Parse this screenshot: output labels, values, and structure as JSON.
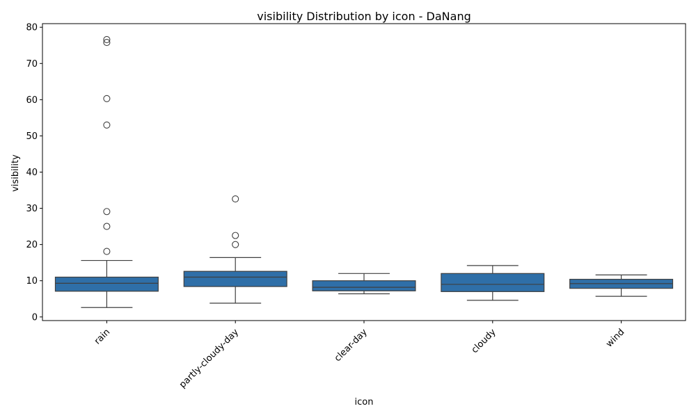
{
  "chart_data": {
    "type": "box",
    "title": "visibility Distribution by icon - DaNang",
    "xlabel": "icon",
    "ylabel": "visibility",
    "ylim": [
      -1,
      81
    ],
    "yticks": [
      0,
      10,
      20,
      30,
      40,
      50,
      60,
      70,
      80
    ],
    "grid": false,
    "legend": "none",
    "box_color": "#2f6fa8",
    "categories": [
      "rain",
      "partly-cloudy-day",
      "clear-day",
      "cloudy",
      "wind"
    ],
    "boxes": [
      {
        "category": "rain",
        "whislo": 2.6,
        "q1": 7.1,
        "med": 9.3,
        "q3": 11.0,
        "whishi": 15.6,
        "fliers": [
          76.6,
          75.8,
          60.3,
          53.0,
          29.1,
          25.0,
          18.1
        ]
      },
      {
        "category": "partly-cloudy-day",
        "whislo": 3.8,
        "q1": 8.4,
        "med": 11.0,
        "q3": 12.6,
        "whishi": 16.4,
        "fliers": [
          32.6,
          22.5,
          20.0
        ]
      },
      {
        "category": "clear-day",
        "whislo": 6.4,
        "q1": 7.2,
        "med": 8.2,
        "q3": 10.0,
        "whishi": 12.0,
        "fliers": []
      },
      {
        "category": "cloudy",
        "whislo": 4.6,
        "q1": 7.0,
        "med": 9.0,
        "q3": 12.0,
        "whishi": 14.2,
        "fliers": []
      },
      {
        "category": "wind",
        "whislo": 5.7,
        "q1": 7.9,
        "med": 9.2,
        "q3": 10.4,
        "whishi": 11.6,
        "fliers": []
      }
    ]
  }
}
